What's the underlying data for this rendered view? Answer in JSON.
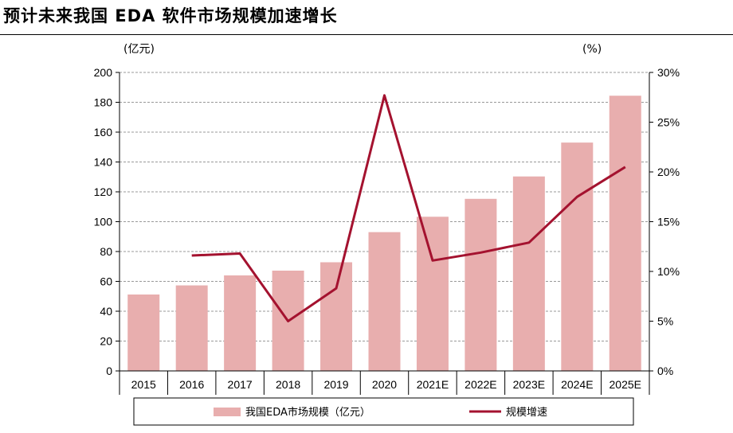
{
  "title": "预计未来我国 EDA 软件市场规模加速增长",
  "chart_data": {
    "type": "bar",
    "categories": [
      "2015",
      "2016",
      "2017",
      "2018",
      "2019",
      "2020",
      "2021E",
      "2022E",
      "2023E",
      "2024E",
      "2025E"
    ],
    "series": [
      {
        "name": "我国EDA市场规模（亿元）",
        "type": "bar",
        "axis": "left",
        "values": [
          51.2,
          57.3,
          64.0,
          67.2,
          72.8,
          93.0,
          103.3,
          115.3,
          130.3,
          153.0,
          184.4
        ]
      },
      {
        "name": "规模增速",
        "type": "line",
        "axis": "right",
        "values": [
          null,
          11.6,
          11.8,
          5.0,
          8.3,
          27.7,
          11.1,
          11.9,
          12.9,
          17.5,
          20.5
        ]
      }
    ],
    "left_axis": {
      "unit_label": "(亿元)",
      "range": [
        0,
        200
      ],
      "ticks": [
        "0",
        "20",
        "40",
        "60",
        "80",
        "100",
        "120",
        "140",
        "160",
        "180",
        "200"
      ]
    },
    "right_axis": {
      "unit_label": "(%)",
      "range": [
        0,
        30
      ],
      "ticks": [
        "0%",
        "5%",
        "10%",
        "15%",
        "20%",
        "25%",
        "30%"
      ]
    },
    "grid": true,
    "legend_position": "bottom",
    "colors": {
      "bar": "#e8aeae",
      "line": "#a4122f",
      "grid": "#999999"
    }
  }
}
